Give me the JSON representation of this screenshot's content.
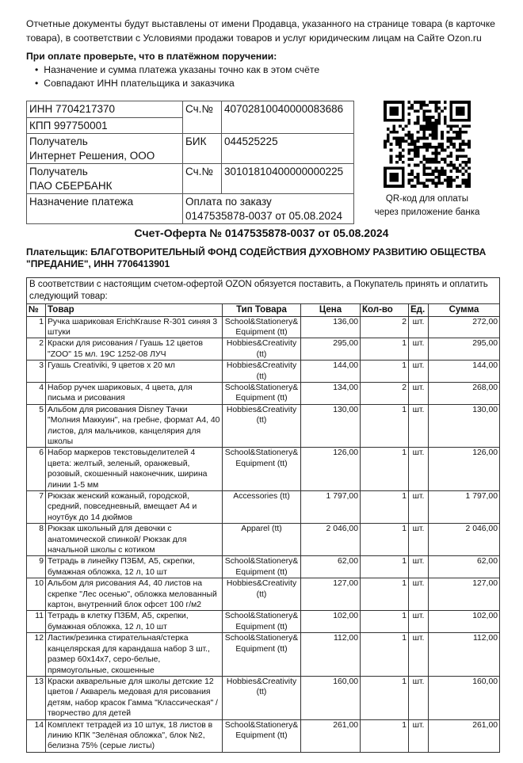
{
  "intro_text": "Отчетные документы будут выставлены от имени Продавца, указанного на странице товара (в карточке товара), в соответствии с Условиями продажи товаров и услуг юридическим лицам на Сайте Ozon.ru",
  "check": {
    "title": "При оплате проверьте, что в платёжном поручении:",
    "items": [
      "Назначение и сумма платежа указаны точно как в этом счёте",
      "Совпадают ИНН плательщика и заказчика"
    ]
  },
  "bank": {
    "inn": "ИНН 7704217370",
    "kpp": "КПП 997750001",
    "acc_label": "Сч.№",
    "acc": "40702810040000083686",
    "recipient_label": "Получатель",
    "recipient": "Интернет Решения, ООО",
    "bik_label": "БИК",
    "bik": "044525225",
    "bank_label": "Получатель",
    "bank_name": "ПАО СБЕРБАНК",
    "corr_label": "Сч.№",
    "corr": "30101810400000000225",
    "purpose_label": "Назначение платежа",
    "purpose_line1": "Оплата по заказу",
    "purpose_line2": "0147535878-0037 от 05.08.2024"
  },
  "qr": {
    "icon": "qr-code",
    "caption_line1": "QR-код для оплаты",
    "caption_line2": "через приложение банка"
  },
  "doc_title": "Счет-Оферта № 0147535878-0037 от 05.08.2024",
  "payer": "Плательщик: БЛАГОТВОРИТЕЛЬНЫЙ ФОНД СОДЕЙСТВИЯ ДУХОВНОМУ РАЗВИТИЮ ОБЩЕСТВА \"ПРЕДАНИЕ\", ИНН 7706413901",
  "items_table": {
    "intro": "В соответствии с настоящим счетом-офертой OZON обязуется поставить, а Покупатель принять и оплатить следующий товар:",
    "headers": [
      "№",
      "Товар",
      "Тип Товара",
      "Цена",
      "Кол-во",
      "Ед.",
      "Сумма"
    ],
    "rows": [
      [
        "1",
        "Ручка шариковая ErichKrause R-301 синяя 3 штуки",
        "School&Stationery& Equipment (tt)",
        "136,00",
        "2",
        "шт.",
        "272,00"
      ],
      [
        "2",
        "Краски для рисования / Гуашь 12 цветов \"ZOO\" 15 мл. 19С 1252-08 ЛУЧ",
        "Hobbies&Creativity (tt)",
        "295,00",
        "1",
        "шт.",
        "295,00"
      ],
      [
        "3",
        "Гуашь Creativiki, 9 цветов х 20 мл",
        "Hobbies&Creativity (tt)",
        "144,00",
        "1",
        "шт.",
        "144,00"
      ],
      [
        "4",
        "Набор ручек шариковых, 4 цвета, для письма и рисования",
        "School&Stationery& Equipment (tt)",
        "134,00",
        "2",
        "шт.",
        "268,00"
      ],
      [
        "5",
        "Альбом для рисования Disney Тачки \"Молния Маккуин\", на гребне, формат А4, 40 листов, для мальчиков, канцелярия для школы",
        "Hobbies&Creativity (tt)",
        "130,00",
        "1",
        "шт.",
        "130,00"
      ],
      [
        "6",
        "Набор маркеров текстовыделителей 4 цвета: желтый, зеленый, оранжевый, розовый, скошенный наконечник, ширина линии 1-5 мм",
        "School&Stationery& Equipment (tt)",
        "126,00",
        "1",
        "шт.",
        "126,00"
      ],
      [
        "7",
        "Рюкзак женский кожаный, городской, средний, повседневный, вмещает А4 и ноутбук до 14 дюймов",
        "Accessories (tt)",
        "1 797,00",
        "1",
        "шт.",
        "1 797,00"
      ],
      [
        "8",
        "Рюкзак школьный для девочки с анатомической спинкой/ Рюкзак для начальной школы с котиком",
        "Apparel (tt)",
        "2 046,00",
        "1",
        "шт.",
        "2 046,00"
      ],
      [
        "9",
        "Тетрадь в линейку ПЗБМ, А5, скрепки, бумажная обложка, 12 л, 10 шт",
        "School&Stationery& Equipment (tt)",
        "62,00",
        "1",
        "шт.",
        "62,00"
      ],
      [
        "10",
        "Альбом для рисования А4, 40 листов на скрепке \"Лес осенью\", обложка мелованный картон, внутренний блок офсет 100 г/м2",
        "Hobbies&Creativity (tt)",
        "127,00",
        "1",
        "шт.",
        "127,00"
      ],
      [
        "11",
        "Тетрадь в клетку ПЗБМ, А5, скрепки, бумажная обложка, 12 л, 10 шт",
        "School&Stationery& Equipment (tt)",
        "102,00",
        "1",
        "шт.",
        "102,00"
      ],
      [
        "12",
        "Ластик/резинка стирательная/стерка канцелярская для карандаша набор 3 шт., размер 60x14x7, серо-белые, прямоугольные, скошенные",
        "School&Stationery& Equipment (tt)",
        "112,00",
        "1",
        "шт.",
        "112,00"
      ],
      [
        "13",
        "Краски акварельные для школы детские 12 цветов / Акварель медовая для рисования детям, набор красок Гамма \"Классическая\" / творчество для детей",
        "Hobbies&Creativity (tt)",
        "160,00",
        "1",
        "шт.",
        "160,00"
      ],
      [
        "14",
        "Комплект тетрадей из 10 штук, 18 листов в линию КПК \"Зелёная обложка\", блок №2, белизна 75% (серые листы)",
        "School&Stationery& Equipment (tt)",
        "261,00",
        "1",
        "шт.",
        "261,00"
      ]
    ]
  }
}
